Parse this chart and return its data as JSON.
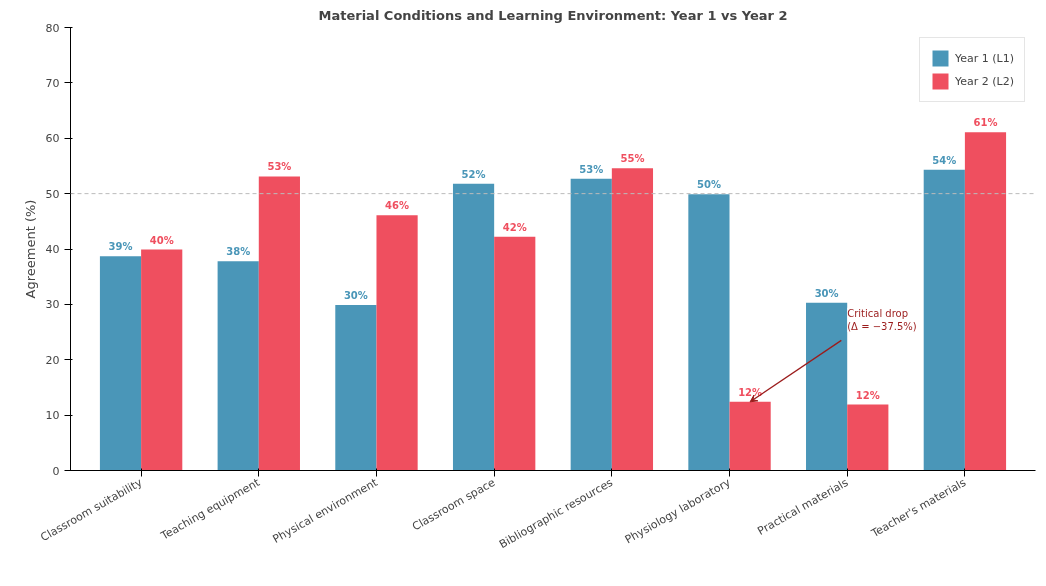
{
  "chart_data": {
    "type": "bar",
    "title": "Material Conditions and Learning Environment: Year 1 vs Year 2",
    "ylabel": "Agreement (%)",
    "categories": [
      "Classroom suitability",
      "Teaching equipment",
      "Physical environment",
      "Classroom space",
      "Bibliographic resources",
      "Physiology laboratory",
      "Practical materials",
      "Teacher's materials"
    ],
    "series": [
      {
        "name": "Year 1 (L1)",
        "color": "#4a96b8",
        "values": [
          38.7,
          37.8,
          29.9,
          51.8,
          52.7,
          49.9,
          30.3,
          54.3
        ],
        "value_labels": [
          "39%",
          "38%",
          "30%",
          "52%",
          "53%",
          "50%",
          "30%",
          "54%"
        ]
      },
      {
        "name": "Year 2 (L2)",
        "color": "#ef4f5f",
        "values": [
          39.9,
          53.1,
          46.1,
          42.2,
          54.6,
          12.4,
          11.9,
          61.1
        ],
        "value_labels": [
          "40%",
          "53%",
          "46%",
          "42%",
          "55%",
          "12%",
          "12%",
          "61%"
        ]
      }
    ],
    "ylim": [
      0,
      80
    ],
    "yticks": [
      0,
      10,
      20,
      30,
      40,
      50,
      60,
      70,
      80
    ],
    "ref_lines": [
      {
        "axis": "y",
        "value": 50,
        "color": "#bbbbbb",
        "line_style": "dashed"
      }
    ],
    "annotations": [
      {
        "text": "Critical drop\n(Δ = −37.5%)",
        "x": "Practical materials",
        "y": 25
      }
    ],
    "grid": false,
    "legend": "top right"
  }
}
